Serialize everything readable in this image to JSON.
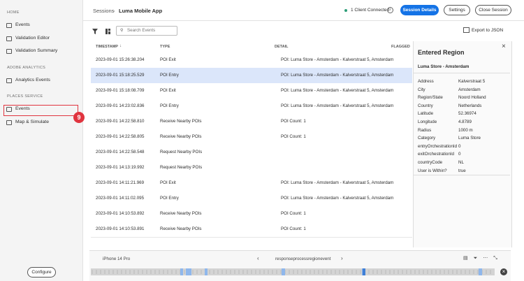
{
  "sidebar": {
    "sections": [
      {
        "title": "HOME",
        "items": [
          "Events",
          "Validation Editor",
          "Validation Summary"
        ]
      },
      {
        "title": "ADOBE ANALYTICS",
        "items": [
          "Analytics Events"
        ]
      },
      {
        "title": "PLACES SERVICE",
        "items": [
          "Events",
          "Map & Simulate"
        ]
      }
    ],
    "callout": "9",
    "configure": "Configure"
  },
  "header": {
    "breadcrumb": "Sessions",
    "title": "Luma Mobile App",
    "status": "1 Client Connected",
    "buttons": [
      "Session Details",
      "Settings",
      "Close Session"
    ]
  },
  "toolbar": {
    "search_placeholder": "Search Events",
    "export": "Export to JSON"
  },
  "table": {
    "columns": [
      "TIMESTAMP",
      "TYPE",
      "DETAIL",
      "FLAGGED"
    ],
    "rows": [
      {
        "timestamp": "2023-09-01 15:26:38.204",
        "type": "POI Exit",
        "detail": "POI: Luma Store - Amsterdam - Kalverstraat 5, Amsterdam"
      },
      {
        "timestamp": "2023-09-01 15:18:25.529",
        "type": "POI Entry",
        "detail": "POI: Luma Store - Amsterdam - Kalverstraat 5, Amsterdam"
      },
      {
        "timestamp": "2023-09-01 15:18:08.709",
        "type": "POI Exit",
        "detail": "POI: Luma Store - Amsterdam - Kalverstraat 5, Amsterdam"
      },
      {
        "timestamp": "2023-09-01 14:23:02.836",
        "type": "POI Entry",
        "detail": "POI: Luma Store - Amsterdam - Kalverstraat 5, Amsterdam"
      },
      {
        "timestamp": "2023-09-01 14:22:58.810",
        "type": "Receive Nearby POIs",
        "detail": "POI Count: 1"
      },
      {
        "timestamp": "2023-09-01 14:22:58.805",
        "type": "Receive Nearby POIs",
        "detail": "POI Count: 1"
      },
      {
        "timestamp": "2023-09-01 14:22:58.548",
        "type": "Request Nearby POIs"
      },
      {
        "timestamp": "2023-09-01 14:13:19.992",
        "type": "Request Nearby POIs"
      },
      {
        "timestamp": "2023-09-01 14:11:21.969",
        "type": "POI Exit",
        "detail": "POI: Luma Store - Amsterdam - Kalverstraat 5, Amsterdam"
      },
      {
        "timestamp": "2023-09-01 14:11:02.095",
        "type": "POI Entry",
        "detail": "POI: Luma Store - Amsterdam - Kalverstraat 5, Amsterdam"
      },
      {
        "timestamp": "2023-09-01 14:10:53.892",
        "type": "Receive Nearby POIs",
        "detail": "POI Count: 1"
      },
      {
        "timestamp": "2023-09-01 14:10:53.891",
        "type": "Receive Nearby POIs",
        "detail": "POI Count: 1"
      }
    ]
  },
  "panel": {
    "title": "Entered Region",
    "subtitle": "Luma Store - Amsterdam",
    "properties": [
      [
        "Address",
        "Kalverstraat 5"
      ],
      [
        "City",
        "Amsterdam"
      ],
      [
        "Region/State",
        "Noord Holland"
      ],
      [
        "Country",
        "Netherlands"
      ],
      [
        "Latitude",
        "52.36974"
      ],
      [
        "Longitude",
        "4.8789"
      ],
      [
        "Radius",
        "1000 m"
      ],
      [
        "Category",
        "Luma Store"
      ],
      [
        "entryOrchestrationId",
        "0"
      ],
      [
        "exitOrchestrationId",
        "0"
      ],
      [
        "countryCode",
        "NL"
      ],
      [
        "User is Within?",
        "true"
      ]
    ]
  },
  "footer": {
    "device": "iPhone 14 Pro",
    "event": "responseprocessregionevent"
  }
}
